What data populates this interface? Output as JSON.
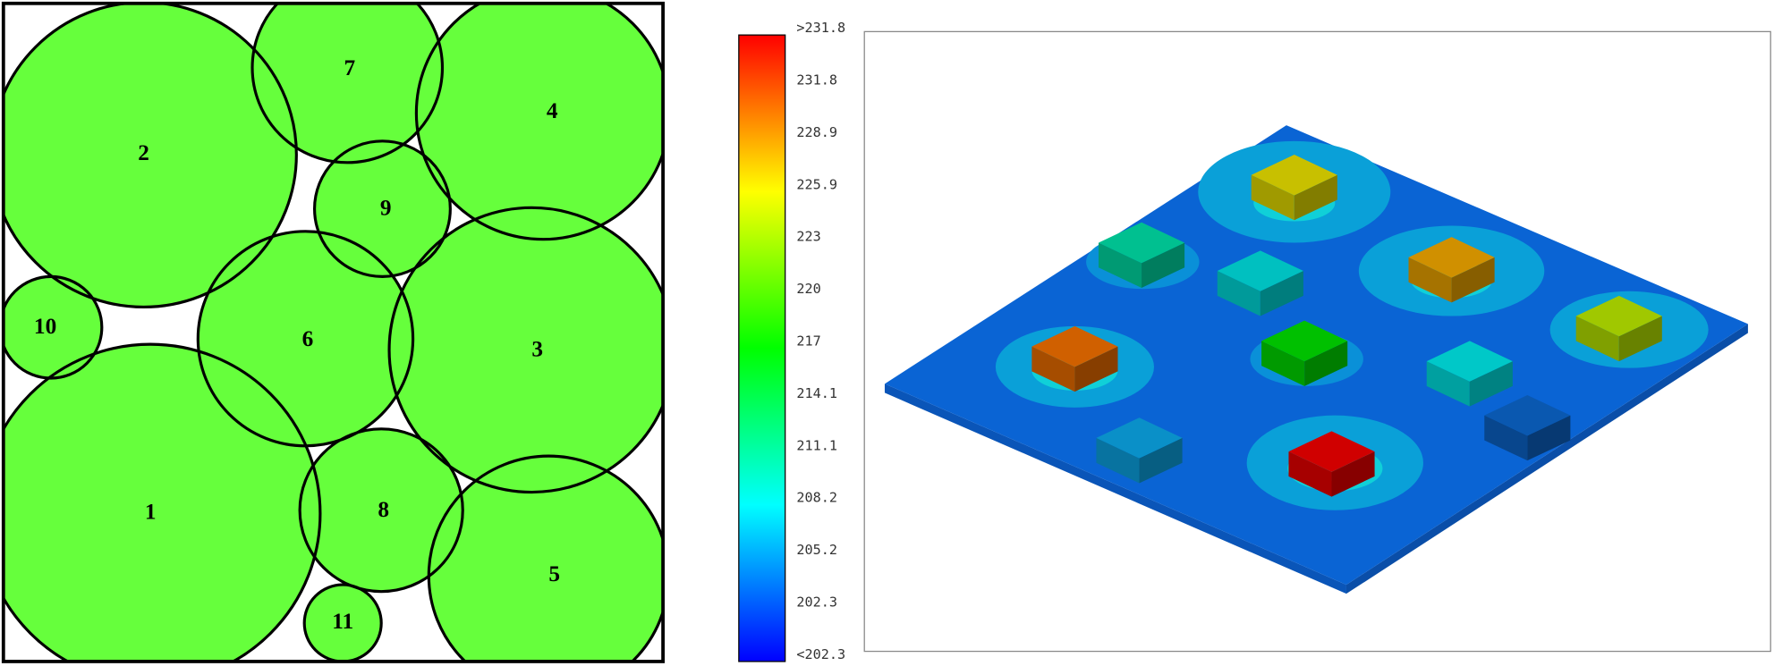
{
  "nodes": [
    {
      "label": "1"
    },
    {
      "label": "2"
    },
    {
      "label": "3"
    },
    {
      "label": "4"
    },
    {
      "label": "5"
    },
    {
      "label": "6"
    },
    {
      "label": "7"
    },
    {
      "label": "8"
    },
    {
      "label": "9"
    },
    {
      "label": "10"
    },
    {
      "label": "11"
    }
  ],
  "colorbar": {
    "labels": [
      ">231.8",
      "231.8",
      "228.9",
      "225.9",
      "223",
      "220",
      "217",
      "214.1",
      "211.1",
      "208.2",
      "205.2",
      "202.3",
      "<202.3"
    ]
  }
}
